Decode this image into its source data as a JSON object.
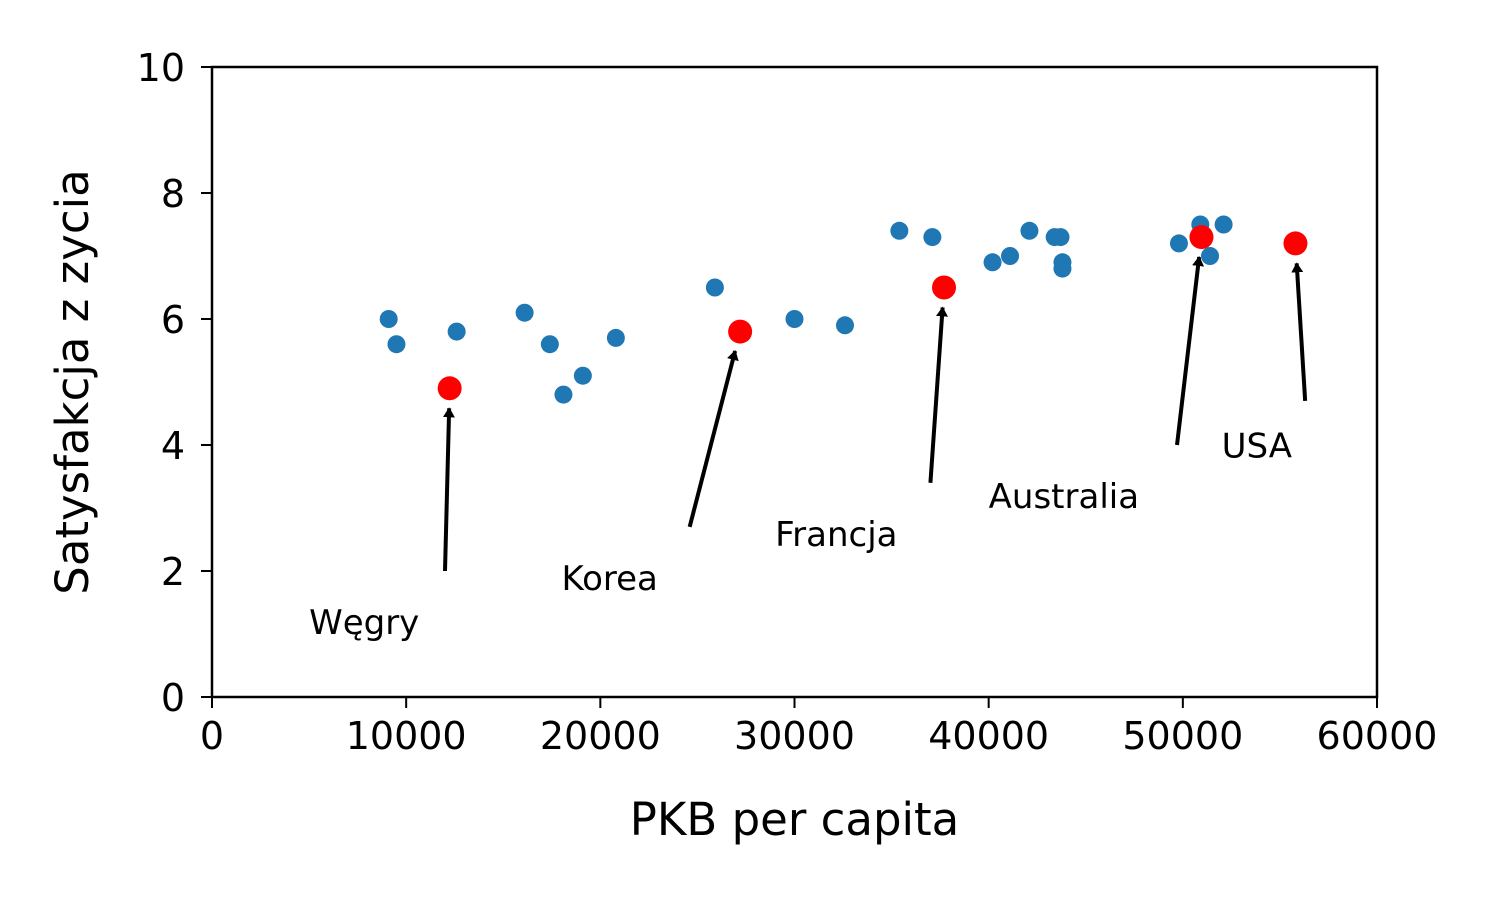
{
  "chart_data": {
    "type": "scatter",
    "xlabel": "PKB per capita",
    "ylabel": "Satysfakcja z zycia",
    "xlim": [
      0,
      60000
    ],
    "ylim": [
      0,
      10
    ],
    "xticks": [
      "0",
      "10000",
      "20000",
      "30000",
      "40000",
      "50000",
      "60000"
    ],
    "yticks": [
      "0",
      "2",
      "4",
      "6",
      "8",
      "10"
    ],
    "grid": false,
    "series": [
      {
        "color": "#1f77b4",
        "points": [
          {
            "x": 9100,
            "y": 6.0
          },
          {
            "x": 9500,
            "y": 5.6
          },
          {
            "x": 12600,
            "y": 5.8
          },
          {
            "x": 16100,
            "y": 6.1
          },
          {
            "x": 17400,
            "y": 5.6
          },
          {
            "x": 18100,
            "y": 4.8
          },
          {
            "x": 19100,
            "y": 5.1
          },
          {
            "x": 20800,
            "y": 5.7
          },
          {
            "x": 25900,
            "y": 6.5
          },
          {
            "x": 30000,
            "y": 6.0
          },
          {
            "x": 32600,
            "y": 5.9
          },
          {
            "x": 35400,
            "y": 7.4
          },
          {
            "x": 37100,
            "y": 7.3
          },
          {
            "x": 40200,
            "y": 6.9
          },
          {
            "x": 41100,
            "y": 7.0
          },
          {
            "x": 42100,
            "y": 7.4
          },
          {
            "x": 43400,
            "y": 7.3
          },
          {
            "x": 43700,
            "y": 7.3
          },
          {
            "x": 43800,
            "y": 6.9
          },
          {
            "x": 43800,
            "y": 6.8
          },
          {
            "x": 49800,
            "y": 7.2
          },
          {
            "x": 50900,
            "y": 7.5
          },
          {
            "x": 51400,
            "y": 7.0
          },
          {
            "x": 52100,
            "y": 7.5
          }
        ]
      },
      {
        "color": "#ff0000",
        "points": [
          {
            "x": 12240,
            "y": 4.9
          },
          {
            "x": 27200,
            "y": 5.8
          },
          {
            "x": 37700,
            "y": 6.5
          },
          {
            "x": 50960,
            "y": 7.3
          },
          {
            "x": 55800,
            "y": 7.2
          }
        ]
      }
    ],
    "annotations": [
      {
        "text": "Węgry",
        "target": {
          "x": 12240,
          "y": 4.9
        },
        "text_pos": {
          "x": 5000,
          "y": 1.0
        },
        "tail": {
          "x": 12000,
          "y": 2.0
        }
      },
      {
        "text": "Korea",
        "target": {
          "x": 27200,
          "y": 5.8
        },
        "text_pos": {
          "x": 18000,
          "y": 1.7
        },
        "tail": {
          "x": 24600,
          "y": 2.7
        }
      },
      {
        "text": "Francja",
        "target": {
          "x": 37700,
          "y": 6.5
        },
        "text_pos": {
          "x": 29000,
          "y": 2.4
        },
        "tail": {
          "x": 37000,
          "y": 3.4
        }
      },
      {
        "text": "Australia",
        "target": {
          "x": 50960,
          "y": 7.3
        },
        "text_pos": {
          "x": 40000,
          "y": 3.0
        },
        "tail": {
          "x": 49700,
          "y": 4.0
        }
      },
      {
        "text": "USA",
        "target": {
          "x": 55800,
          "y": 7.2
        },
        "text_pos": {
          "x": 52000,
          "y": 3.8
        },
        "tail": {
          "x": 56300,
          "y": 4.7
        }
      }
    ]
  }
}
